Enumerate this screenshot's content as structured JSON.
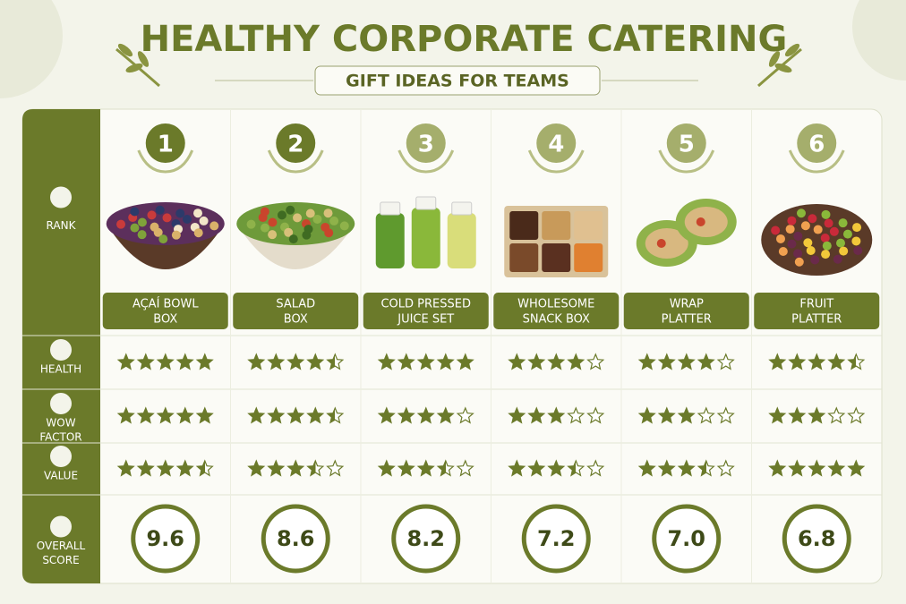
{
  "header": {
    "title": "HEALTHY CORPORATE CATERING",
    "subtitle": "GIFT IDEAS FOR TEAMS"
  },
  "row_labels": {
    "rank": [
      "RANK"
    ],
    "health": [
      "HEALTH"
    ],
    "wow_factor": [
      "WOW",
      "FACTOR"
    ],
    "value": [
      "VALUE"
    ],
    "overall_score": [
      "OVERALL",
      "SCORE"
    ]
  },
  "items": [
    {
      "rank": 1,
      "name": [
        "AÇAÍ BOWL",
        "BOX"
      ],
      "health": 5,
      "wow_factor": 5,
      "value": 4.5,
      "overall_score": "9.6"
    },
    {
      "rank": 2,
      "name": [
        "SALAD",
        "BOX"
      ],
      "health": 4.5,
      "wow_factor": 4.5,
      "value": 3.5,
      "overall_score": "8.6"
    },
    {
      "rank": 3,
      "name": [
        "COLD PRESSED",
        "JUICE SET"
      ],
      "health": 5,
      "wow_factor": 4,
      "value": 3.5,
      "overall_score": "8.2"
    },
    {
      "rank": 4,
      "name": [
        "WHOLESOME",
        "SNACK BOX"
      ],
      "health": 4,
      "wow_factor": 3,
      "value": 3.5,
      "overall_score": "7.2"
    },
    {
      "rank": 5,
      "name": [
        "WRAP",
        "PLATTER"
      ],
      "health": 4,
      "wow_factor": 3,
      "value": 3.5,
      "overall_score": "7.0"
    },
    {
      "rank": 6,
      "name": [
        "FRUIT",
        "PLATTER"
      ],
      "health": 4.5,
      "wow_factor": 3,
      "value": 5,
      "overall_score": "6.8"
    }
  ]
}
